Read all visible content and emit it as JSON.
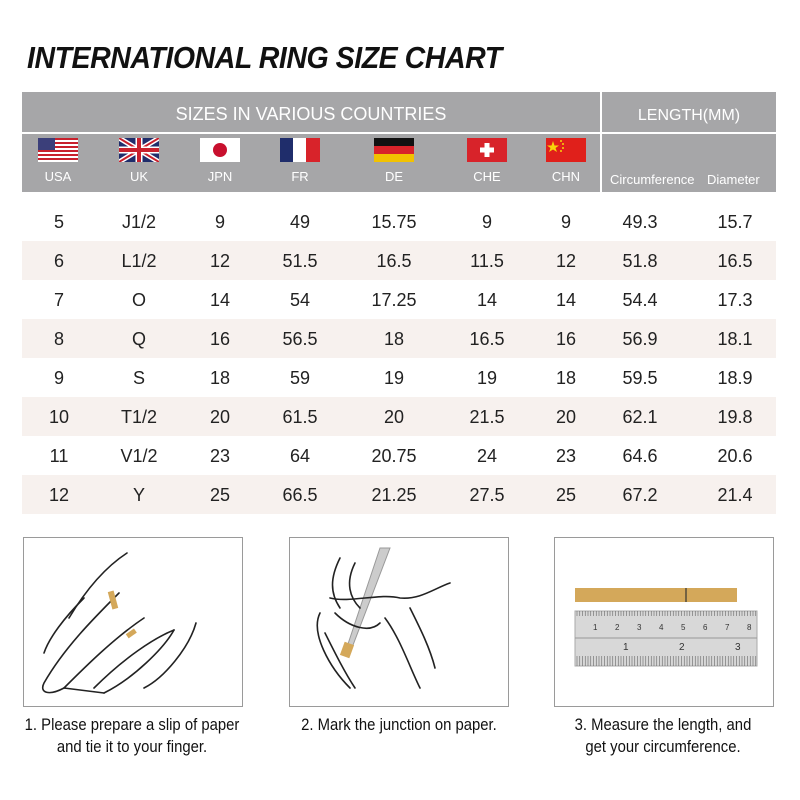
{
  "title": "INTERNATIONAL RING SIZE CHART",
  "header": {
    "sizes_label": "SIZES IN VARIOUS COUNTRIES",
    "length_label": "LENGTH(MM)",
    "countries": [
      "USA",
      "UK",
      "JPN",
      "FR",
      "DE",
      "CHE",
      "CHN"
    ],
    "length_columns": [
      "Circumference",
      "Diameter"
    ]
  },
  "rows": [
    [
      "5",
      "J1/2",
      "9",
      "49",
      "15.75",
      "9",
      "9",
      "49.3",
      "15.7"
    ],
    [
      "6",
      "L1/2",
      "12",
      "51.5",
      "16.5",
      "11.5",
      "12",
      "51.8",
      "16.5"
    ],
    [
      "7",
      "O",
      "14",
      "54",
      "17.25",
      "14",
      "14",
      "54.4",
      "17.3"
    ],
    [
      "8",
      "Q",
      "16",
      "56.5",
      "18",
      "16.5",
      "16",
      "56.9",
      "18.1"
    ],
    [
      "9",
      "S",
      "18",
      "59",
      "19",
      "19",
      "18",
      "59.5",
      "18.9"
    ],
    [
      "10",
      "T1/2",
      "20",
      "61.5",
      "20",
      "21.5",
      "20",
      "62.1",
      "19.8"
    ],
    [
      "11",
      "V1/2",
      "23",
      "64",
      "20.75",
      "24",
      "23",
      "64.6",
      "20.6"
    ],
    [
      "12",
      "Y",
      "25",
      "66.5",
      "21.25",
      "27.5",
      "25",
      "67.2",
      "21.4"
    ]
  ],
  "steps": [
    {
      "line1": "1. Please prepare a slip of paper",
      "line2": "and tie it to your finger."
    },
    {
      "line1": "2. Mark the junction on paper.",
      "line2": ""
    },
    {
      "line1": "3. Measure the length, and",
      "line2": "get your circumference."
    }
  ],
  "ruler": {
    "top_marks": [
      "1",
      "2",
      "3",
      "4",
      "5",
      "6",
      "7",
      "8"
    ],
    "bottom_marks": [
      "1",
      "2",
      "3"
    ]
  },
  "colors": {
    "header_bg": "#a6a6a8",
    "stripe": "#f7f1ee",
    "paper": "#d4a85a"
  }
}
